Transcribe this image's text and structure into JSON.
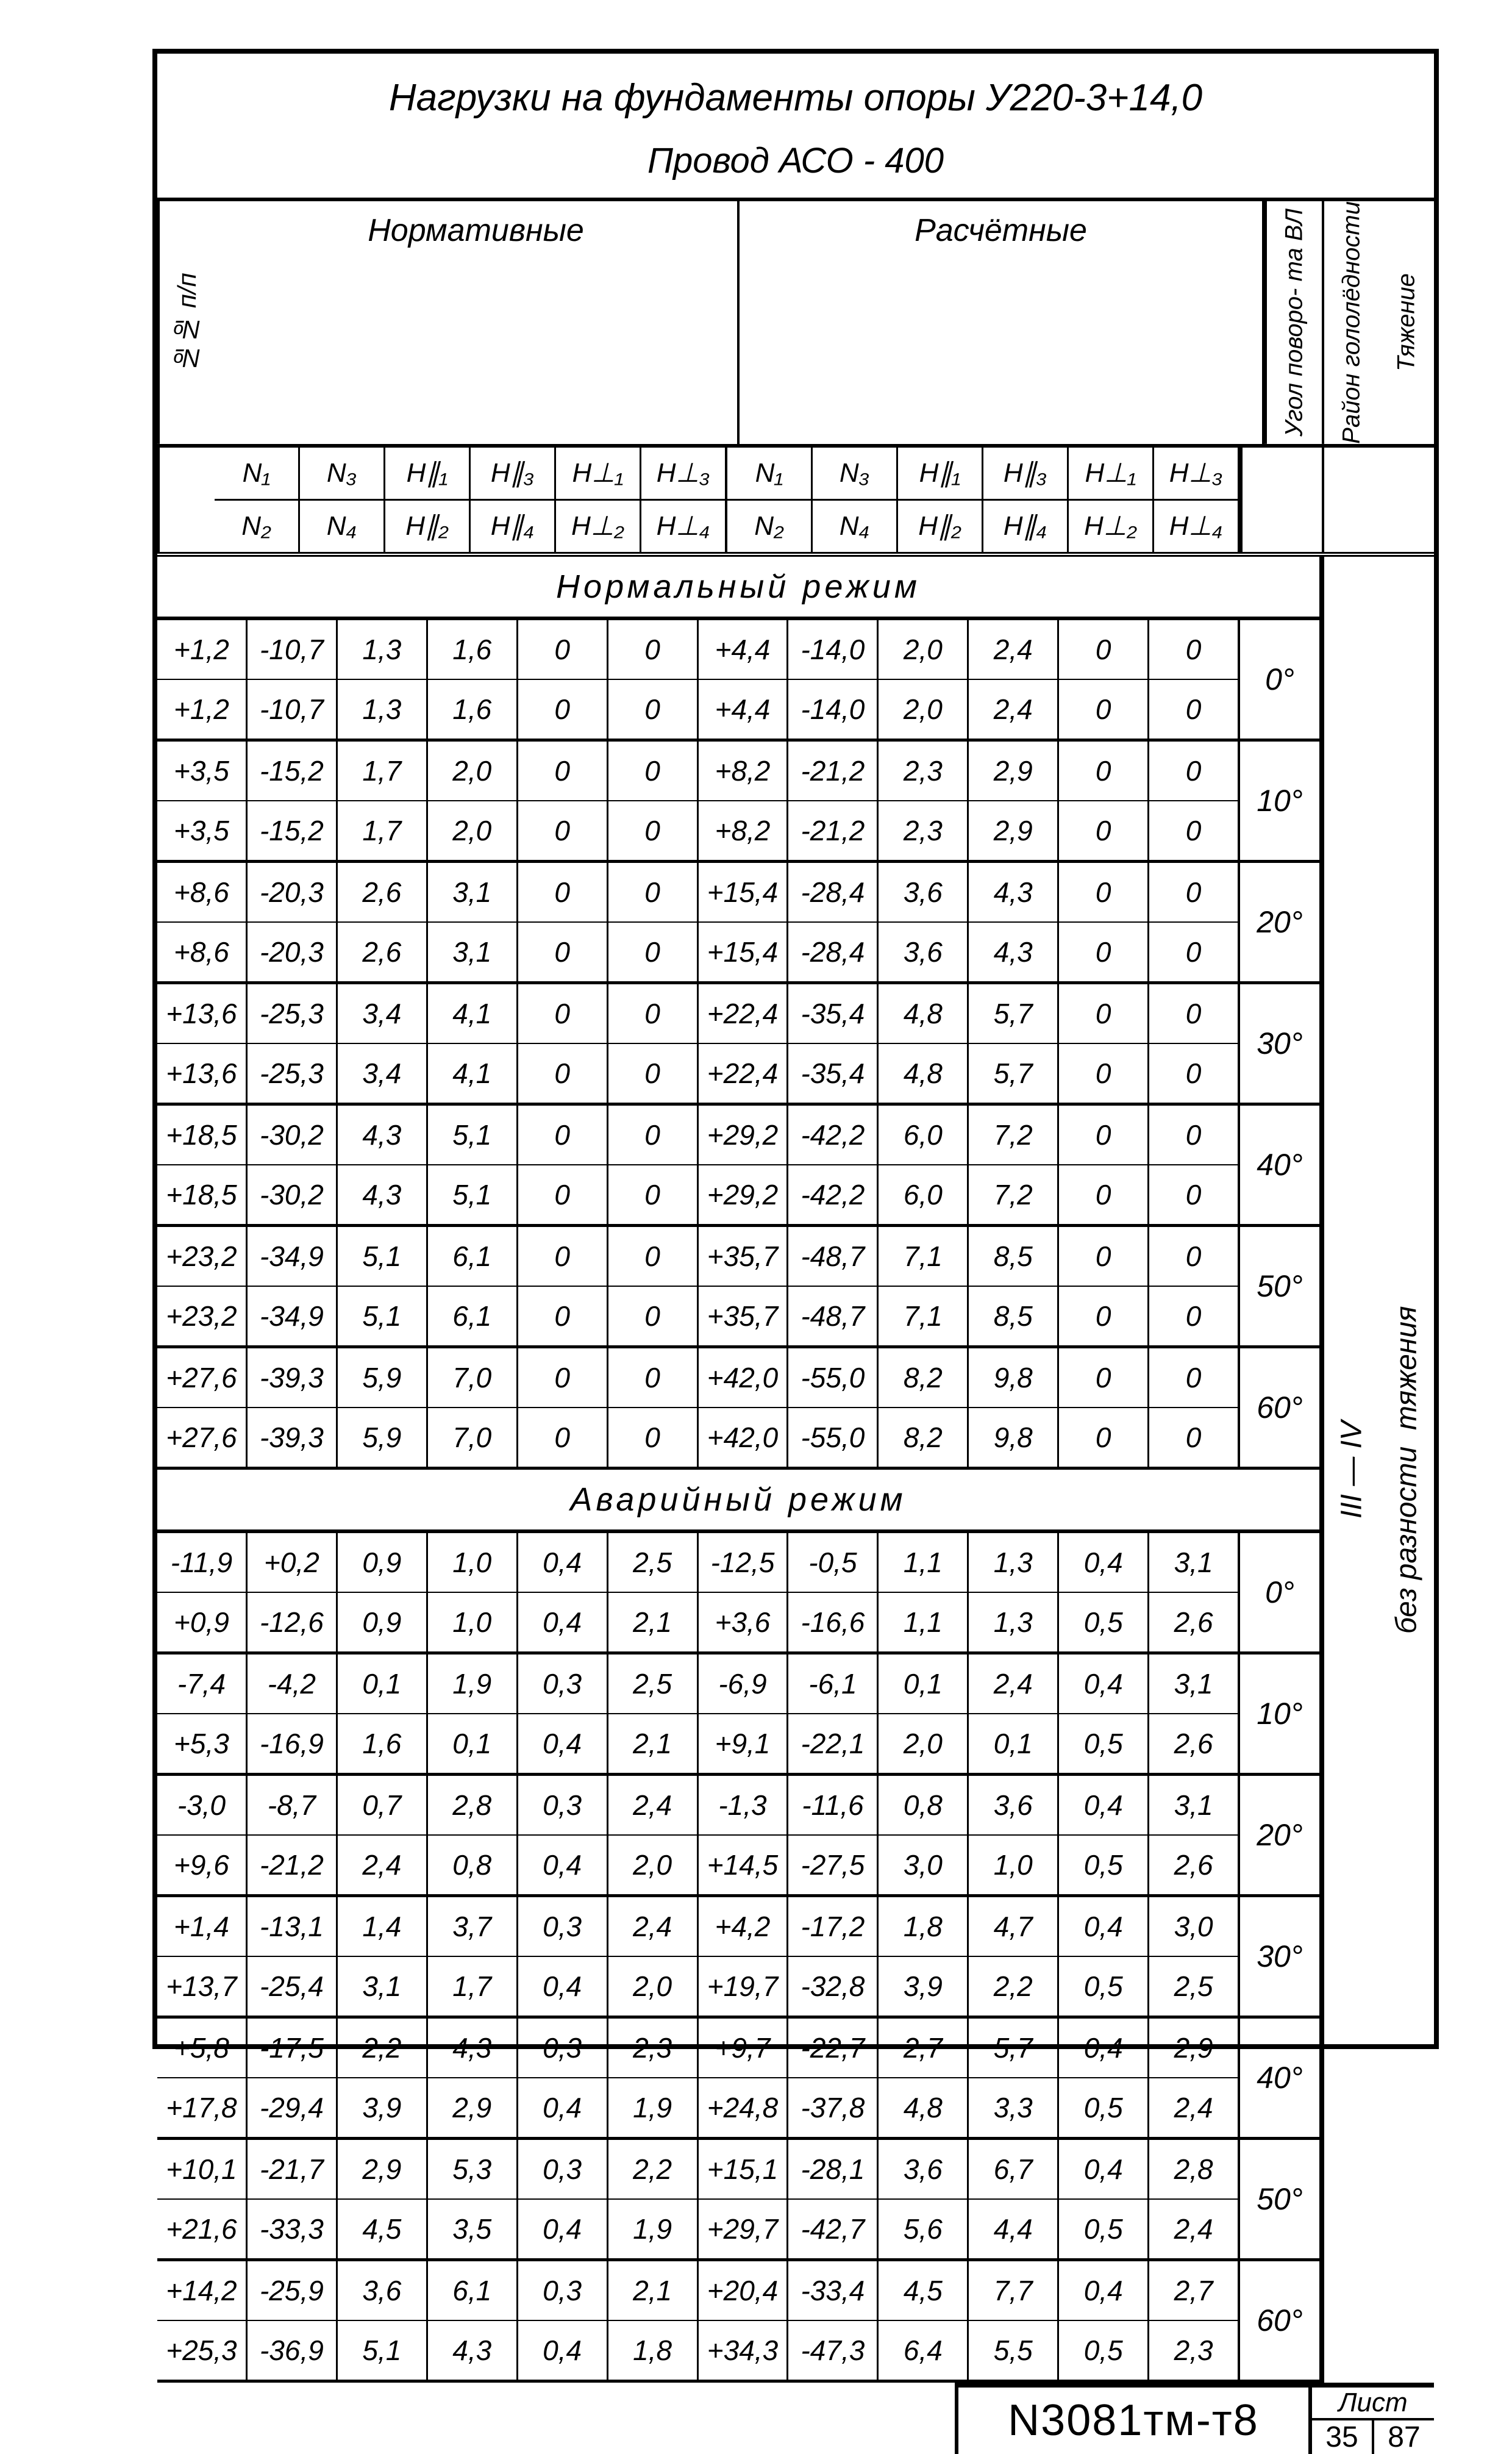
{
  "title_line1": "Нагрузки  на  фундаменты  опоры  У220-3+14,0",
  "title_line2": "Провод   АСО - 400",
  "group_normative": "Нормативные",
  "group_calculated": "Расчётные",
  "rownum_label": "№№ п/п",
  "side_labels": [
    "Угол поворо-\nта ВЛ",
    "Район гололёдности",
    "Тяжение"
  ],
  "sym_rows": [
    [
      "N₁",
      "N₃",
      "H∥₁",
      "H∥₃",
      "H⊥₁",
      "H⊥₃"
    ],
    [
      "N₂",
      "N₄",
      "H∥₂",
      "H∥₄",
      "H⊥₂",
      "H⊥₄"
    ]
  ],
  "section_normal": "Нормальный   режим",
  "section_accident": "Аварийный   режим",
  "right_vertical_top": "тяжения",
  "right_vertical_mid": "III — IV",
  "right_vertical_bottom": "без   разности",
  "normal_groups": [
    {
      "angle": "0°",
      "rows": [
        [
          "+1,2",
          "-10,7",
          "1,3",
          "1,6",
          "0",
          "0",
          "+4,4",
          "-14,0",
          "2,0",
          "2,4",
          "0",
          "0"
        ],
        [
          "+1,2",
          "-10,7",
          "1,3",
          "1,6",
          "0",
          "0",
          "+4,4",
          "-14,0",
          "2,0",
          "2,4",
          "0",
          "0"
        ]
      ]
    },
    {
      "angle": "10°",
      "rows": [
        [
          "+3,5",
          "-15,2",
          "1,7",
          "2,0",
          "0",
          "0",
          "+8,2",
          "-21,2",
          "2,3",
          "2,9",
          "0",
          "0"
        ],
        [
          "+3,5",
          "-15,2",
          "1,7",
          "2,0",
          "0",
          "0",
          "+8,2",
          "-21,2",
          "2,3",
          "2,9",
          "0",
          "0"
        ]
      ]
    },
    {
      "angle": "20°",
      "rows": [
        [
          "+8,6",
          "-20,3",
          "2,6",
          "3,1",
          "0",
          "0",
          "+15,4",
          "-28,4",
          "3,6",
          "4,3",
          "0",
          "0"
        ],
        [
          "+8,6",
          "-20,3",
          "2,6",
          "3,1",
          "0",
          "0",
          "+15,4",
          "-28,4",
          "3,6",
          "4,3",
          "0",
          "0"
        ]
      ]
    },
    {
      "angle": "30°",
      "rows": [
        [
          "+13,6",
          "-25,3",
          "3,4",
          "4,1",
          "0",
          "0",
          "+22,4",
          "-35,4",
          "4,8",
          "5,7",
          "0",
          "0"
        ],
        [
          "+13,6",
          "-25,3",
          "3,4",
          "4,1",
          "0",
          "0",
          "+22,4",
          "-35,4",
          "4,8",
          "5,7",
          "0",
          "0"
        ]
      ]
    },
    {
      "angle": "40°",
      "rows": [
        [
          "+18,5",
          "-30,2",
          "4,3",
          "5,1",
          "0",
          "0",
          "+29,2",
          "-42,2",
          "6,0",
          "7,2",
          "0",
          "0"
        ],
        [
          "+18,5",
          "-30,2",
          "4,3",
          "5,1",
          "0",
          "0",
          "+29,2",
          "-42,2",
          "6,0",
          "7,2",
          "0",
          "0"
        ]
      ]
    },
    {
      "angle": "50°",
      "rows": [
        [
          "+23,2",
          "-34,9",
          "5,1",
          "6,1",
          "0",
          "0",
          "+35,7",
          "-48,7",
          "7,1",
          "8,5",
          "0",
          "0"
        ],
        [
          "+23,2",
          "-34,9",
          "5,1",
          "6,1",
          "0",
          "0",
          "+35,7",
          "-48,7",
          "7,1",
          "8,5",
          "0",
          "0"
        ]
      ]
    },
    {
      "angle": "60°",
      "rows": [
        [
          "+27,6",
          "-39,3",
          "5,9",
          "7,0",
          "0",
          "0",
          "+42,0",
          "-55,0",
          "8,2",
          "9,8",
          "0",
          "0"
        ],
        [
          "+27,6",
          "-39,3",
          "5,9",
          "7,0",
          "0",
          "0",
          "+42,0",
          "-55,0",
          "8,2",
          "9,8",
          "0",
          "0"
        ]
      ]
    }
  ],
  "accident_groups": [
    {
      "angle": "0°",
      "rows": [
        [
          "-11,9",
          "+0,2",
          "0,9",
          "1,0",
          "0,4",
          "2,5",
          "-12,5",
          "-0,5",
          "1,1",
          "1,3",
          "0,4",
          "3,1"
        ],
        [
          "+0,9",
          "-12,6",
          "0,9",
          "1,0",
          "0,4",
          "2,1",
          "+3,6",
          "-16,6",
          "1,1",
          "1,3",
          "0,5",
          "2,6"
        ]
      ]
    },
    {
      "angle": "10°",
      "rows": [
        [
          "-7,4",
          "-4,2",
          "0,1",
          "1,9",
          "0,3",
          "2,5",
          "-6,9",
          "-6,1",
          "0,1",
          "2,4",
          "0,4",
          "3,1"
        ],
        [
          "+5,3",
          "-16,9",
          "1,6",
          "0,1",
          "0,4",
          "2,1",
          "+9,1",
          "-22,1",
          "2,0",
          "0,1",
          "0,5",
          "2,6"
        ]
      ]
    },
    {
      "angle": "20°",
      "rows": [
        [
          "-3,0",
          "-8,7",
          "0,7",
          "2,8",
          "0,3",
          "2,4",
          "-1,3",
          "-11,6",
          "0,8",
          "3,6",
          "0,4",
          "3,1"
        ],
        [
          "+9,6",
          "-21,2",
          "2,4",
          "0,8",
          "0,4",
          "2,0",
          "+14,5",
          "-27,5",
          "3,0",
          "1,0",
          "0,5",
          "2,6"
        ]
      ]
    },
    {
      "angle": "30°",
      "rows": [
        [
          "+1,4",
          "-13,1",
          "1,4",
          "3,7",
          "0,3",
          "2,4",
          "+4,2",
          "-17,2",
          "1,8",
          "4,7",
          "0,4",
          "3,0"
        ],
        [
          "+13,7",
          "-25,4",
          "3,1",
          "1,7",
          "0,4",
          "2,0",
          "+19,7",
          "-32,8",
          "3,9",
          "2,2",
          "0,5",
          "2,5"
        ]
      ]
    },
    {
      "angle": "40°",
      "rows": [
        [
          "+5,8",
          "-17,5",
          "2,2",
          "4,3",
          "0,3",
          "2,3",
          "+9,7",
          "-22,7",
          "2,7",
          "5,7",
          "0,4",
          "2,9"
        ],
        [
          "+17,8",
          "-29,4",
          "3,9",
          "2,9",
          "0,4",
          "1,9",
          "+24,8",
          "-37,8",
          "4,8",
          "3,3",
          "0,5",
          "2,4"
        ]
      ]
    },
    {
      "angle": "50°",
      "rows": [
        [
          "+10,1",
          "-21,7",
          "2,9",
          "5,3",
          "0,3",
          "2,2",
          "+15,1",
          "-28,1",
          "3,6",
          "6,7",
          "0,4",
          "2,8"
        ],
        [
          "+21,6",
          "-33,3",
          "4,5",
          "3,5",
          "0,4",
          "1,9",
          "+29,7",
          "-42,7",
          "5,6",
          "4,4",
          "0,5",
          "2,4"
        ]
      ]
    },
    {
      "angle": "60°",
      "rows": [
        [
          "+14,2",
          "-25,9",
          "3,6",
          "6,1",
          "0,3",
          "2,1",
          "+20,4",
          "-33,4",
          "4,5",
          "7,7",
          "0,4",
          "2,7"
        ],
        [
          "+25,3",
          "-36,9",
          "5,1",
          "4,3",
          "0,4",
          "1,8",
          "+34,3",
          "-47,3",
          "6,4",
          "5,5",
          "0,5",
          "2,3"
        ]
      ]
    }
  ],
  "stamp_code": "N3081тм-т8",
  "stamp_sheet_label": "Лист",
  "stamp_sheet_a": "35",
  "stamp_sheet_b": "87"
}
